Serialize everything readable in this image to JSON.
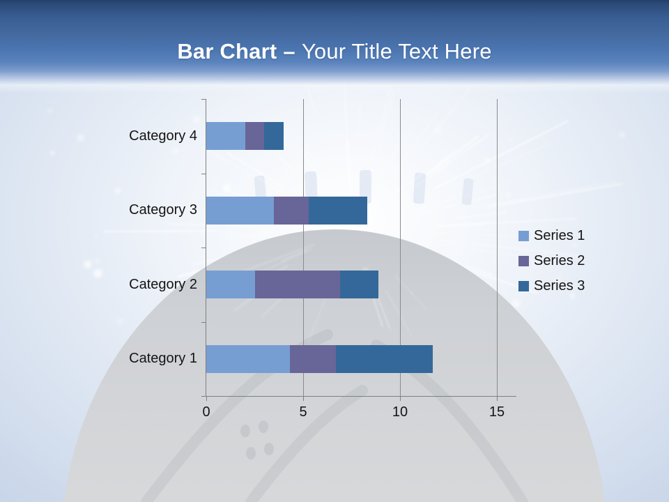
{
  "slide": {
    "title": {
      "bold": "Bar Chart",
      "separator": "–",
      "rest": "Your Title Text Here"
    },
    "theme": {
      "header_blue": "#4b76b1",
      "axis_gray": "#7f7f7f",
      "text_color": "#141414"
    }
  },
  "chart_data": {
    "type": "bar",
    "orientation": "horizontal-stacked",
    "title": "",
    "xlabel": "",
    "ylabel": "",
    "categories": [
      "Category 1",
      "Category 2",
      "Category 3",
      "Category 4"
    ],
    "series": [
      {
        "name": "Series 1",
        "color": "#779ED3",
        "values": [
          4.3,
          2.5,
          3.5,
          2
        ]
      },
      {
        "name": "Series 2",
        "color": "#686598",
        "values": [
          2.4,
          4.4,
          1.8,
          1
        ]
      },
      {
        "name": "Series 3",
        "color": "#34689A",
        "values": [
          5,
          2,
          3,
          1
        ]
      }
    ],
    "xlim": [
      0,
      15
    ],
    "x_ticks": [
      0,
      5,
      10,
      15
    ],
    "grid": true,
    "legend_position": "right"
  }
}
